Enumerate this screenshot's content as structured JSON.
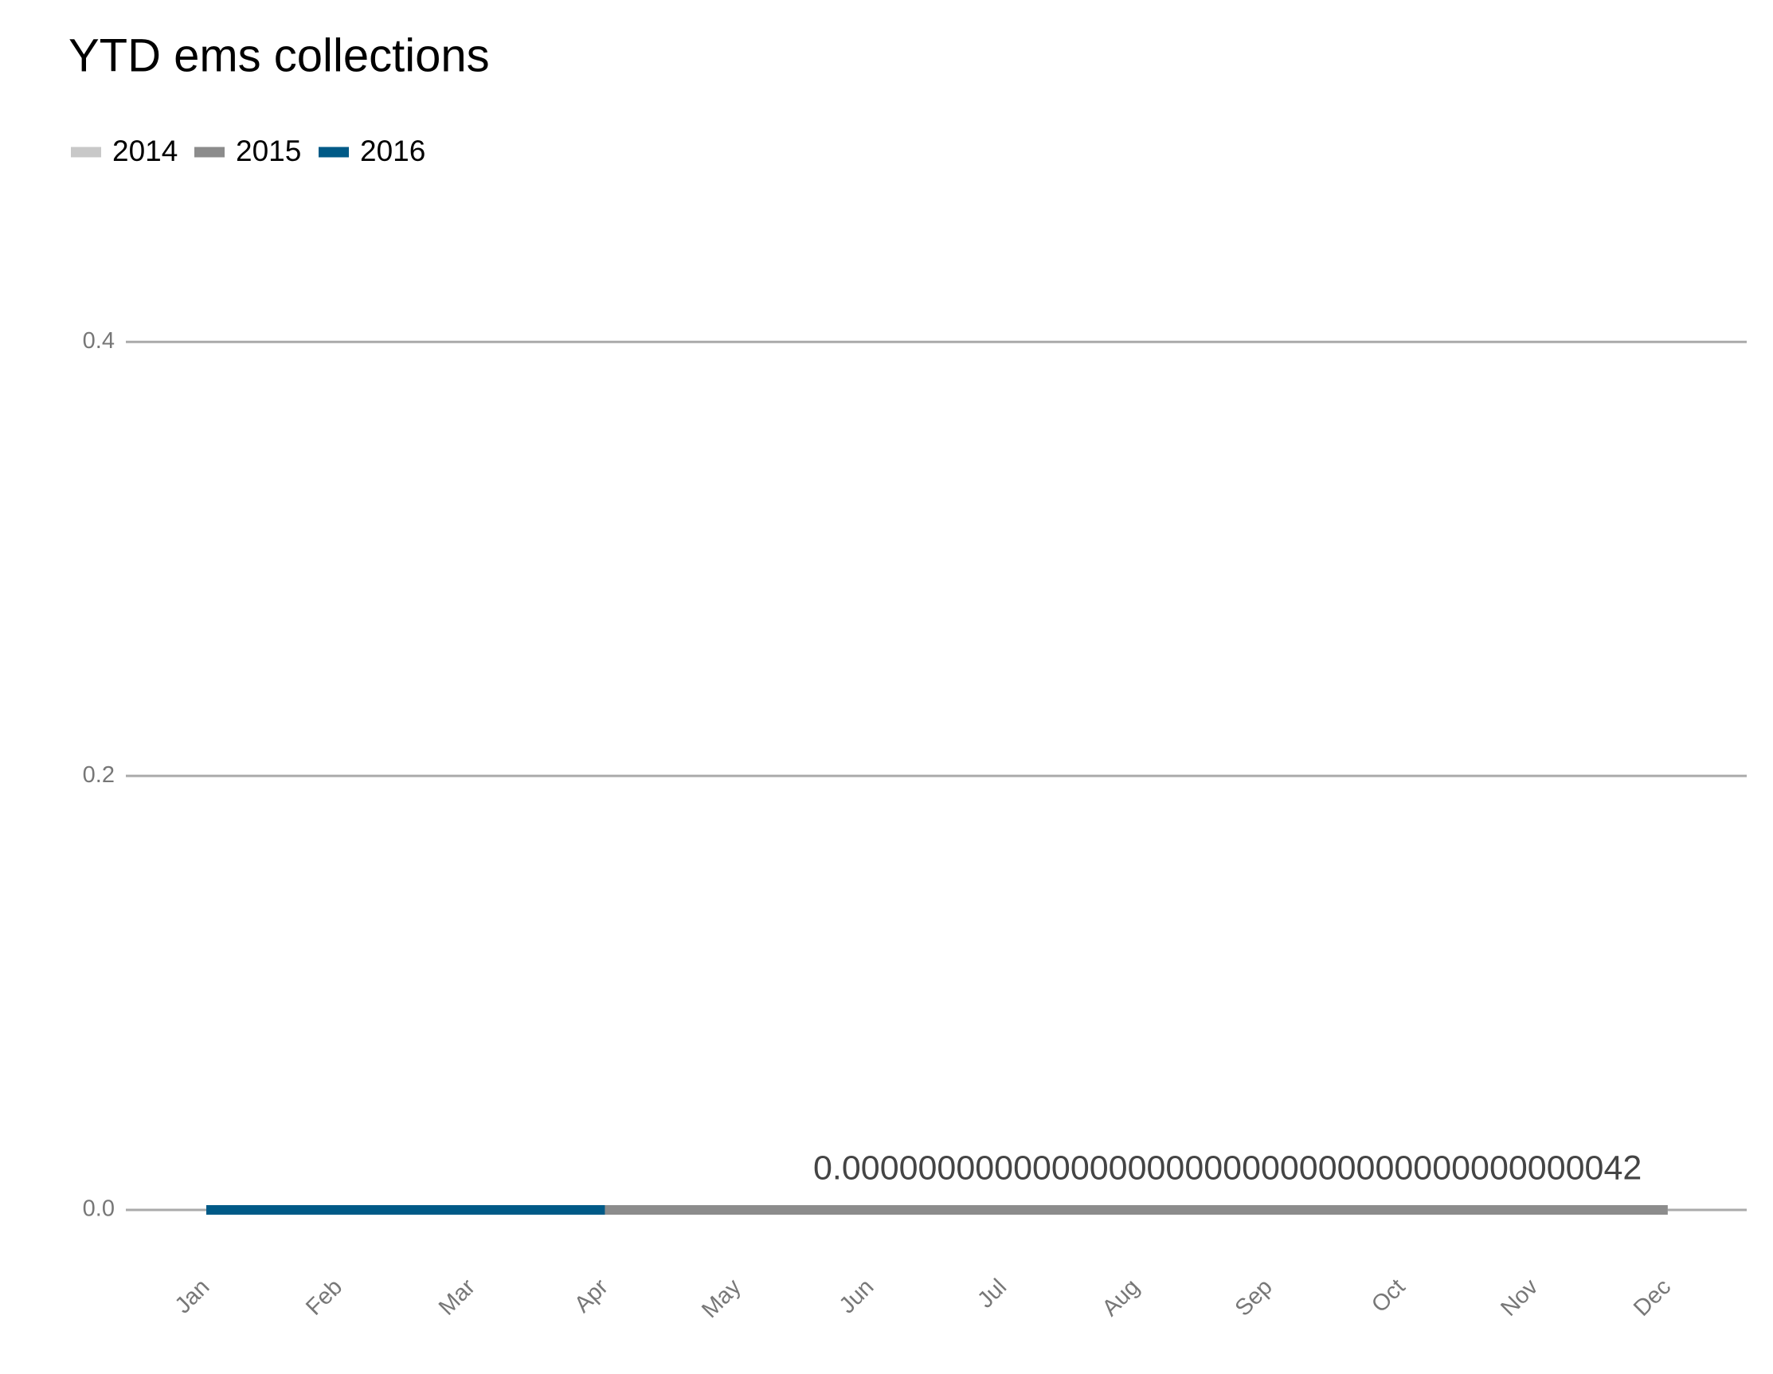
{
  "chart_data": {
    "type": "line",
    "title": "YTD ems collections",
    "categories": [
      "Jan",
      "Feb",
      "Mar",
      "Apr",
      "May",
      "Jun",
      "Jul",
      "Aug",
      "Sep",
      "Oct",
      "Nov",
      "Dec"
    ],
    "series": [
      {
        "name": "2014",
        "color": "#c8c8c8",
        "values": [
          0,
          0,
          0,
          0,
          0,
          0,
          0,
          0,
          0,
          0,
          0,
          0
        ]
      },
      {
        "name": "2015",
        "color": "#8c8c8c",
        "values": [
          0,
          0,
          0,
          0,
          0,
          0,
          0,
          0,
          0,
          0,
          0,
          4.2e-40
        ],
        "value_labels": [
          null,
          null,
          null,
          null,
          null,
          null,
          null,
          null,
          null,
          null,
          null,
          "0.000000000000000000000000000000000000000042"
        ]
      },
      {
        "name": "2016",
        "color": "#005a87",
        "values": [
          0,
          0,
          0,
          0,
          null,
          null,
          null,
          null,
          null,
          null,
          null,
          null
        ]
      }
    ],
    "ylim": [
      -0.02,
      0.45
    ],
    "yticks": [
      {
        "value": 0,
        "label": "0.0"
      },
      0.2,
      0.4
    ],
    "grid": true,
    "legend": "top-left"
  }
}
